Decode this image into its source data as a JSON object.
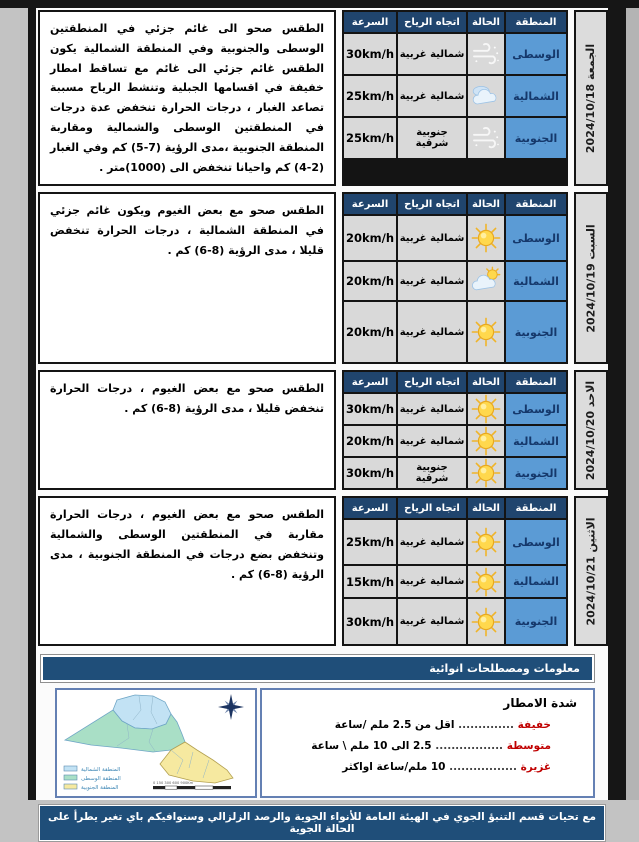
{
  "table": {
    "headers": {
      "region": "المنطقة",
      "condition": "الحالة",
      "wind": "اتجاه الرياح",
      "speed": "السرعة"
    },
    "days": [
      {
        "date": "الجمعة 2024/10/18",
        "description": "الطقس صحو الى غائم جزئي في المنطقتين الوسطى والجنوبية وفي المنطقة الشمالية يكون الطقس غائم جزئي الى غائم مع تساقط امطار خفيفة في اقسامها الجبلية وتنشط الرياح مسببة تصاعد الغبار ، درجات الحرارة تنخفض عدة درجات في المنطقتين الوسطى والشمالية ومقاربة المنطقة الجنوبية ،مدى الرؤية (7-5) كم  وفي الغبار (2-4) كم واحيانا تنخفض الى (1000)متر .",
        "rows": [
          {
            "region": "الوسطى",
            "condition": "wind-dust",
            "wind": "شمالية غربية",
            "speed": "30km/h"
          },
          {
            "region": "الشمالية",
            "condition": "cloudy",
            "wind": "شمالية غربية",
            "speed": "25km/h"
          },
          {
            "region": "الجنوبية",
            "condition": "wind-dust",
            "wind": "جنوبية شرقية",
            "speed": "25km/h"
          }
        ]
      },
      {
        "date": "السبت 2024/10/19",
        "description": "الطقس صحو مع بعض الغيوم ويكون غائم جزئي في المنطقة الشمالية ، درجات الحرارة تنخفض قليلا ، مدى الرؤية (8-6) كم  .",
        "rows": [
          {
            "region": "الوسطى",
            "condition": "sunny",
            "wind": "شمالية غربية",
            "speed": "20km/h"
          },
          {
            "region": "الشمالية",
            "condition": "partly-cloudy",
            "wind": "شمالية غربية",
            "speed": "20km/h"
          },
          {
            "region": "الجنوبية",
            "condition": "sunny",
            "wind": "شمالية غربية",
            "speed": "20km/h"
          }
        ]
      },
      {
        "date": "الاحد 2024/10/20",
        "description": "الطقس صحو مع بعض الغيوم ، درجات الحرارة تنخفض قليلا ، مدى الرؤية (8-6) كم  .",
        "rows": [
          {
            "region": "الوسطى",
            "condition": "sunny",
            "wind": "شمالية غربية",
            "speed": "30km/h"
          },
          {
            "region": "الشمالية",
            "condition": "sunny",
            "wind": "شمالية غربية",
            "speed": "20km/h"
          },
          {
            "region": "الجنوبية",
            "condition": "sunny",
            "wind": "جنوبية شرقية",
            "speed": "30km/h"
          }
        ]
      },
      {
        "date": "الاثنين 2024/10/21",
        "description": "الطقس صحو مع بعض الغيوم  ، درجات الحرارة مقاربة في المنطقتين الوسطى والشمالية وتنخفض بضع درجات في المنطقة الجنوبية ، مدى الرؤية (8-6) كم .",
        "rows": [
          {
            "region": "الوسطى",
            "condition": "sunny",
            "wind": "شمالية غربية",
            "speed": "25km/h"
          },
          {
            "region": "الشمالية",
            "condition": "sunny",
            "wind": "شمالية غربية",
            "speed": "15km/h"
          },
          {
            "region": "الجنوبية",
            "condition": "sunny",
            "wind": "شمالية غربية",
            "speed": "30km/h"
          }
        ]
      }
    ]
  },
  "info_bar": {
    "label": "معلومات ومصطلحات انوائية"
  },
  "rain": {
    "title": "شدة الامطار",
    "items": [
      {
        "name": "خفيفة",
        "dots": "..............",
        "desc": "اقل من 2.5  ملم /ساعة"
      },
      {
        "name": "متوسطة",
        "dots": ".................",
        "desc": "2.5 الى 10 ملم \\ ساعة"
      },
      {
        "name": "غزيرة",
        "dots": ".................",
        "desc": "10 ملم/ساعة اواكثر"
      }
    ]
  },
  "map": {
    "legend": [
      {
        "label": "المنطقة الشمالية",
        "color": "#c2e2f4"
      },
      {
        "label": "المنطقة الوسطى",
        "color": "#a9dfc6"
      },
      {
        "label": "المنطقة الجنوبية",
        "color": "#f6e9a0"
      }
    ],
    "scale_label": "0   150   300      600      900Km"
  },
  "footer": {
    "text": "مع تحيات قسم التنبؤ الجوي في الهيئة العامة للأنواء الجوية والرصد الزلزالي وسنوافيكم  باي تغير يطرأ على الحالة الجوية"
  },
  "colors": {
    "header_bg": "#1f4e79",
    "region_bg": "#5b9bd5",
    "cell_bg": "#d9d9d9",
    "accent_red": "#c00000"
  }
}
